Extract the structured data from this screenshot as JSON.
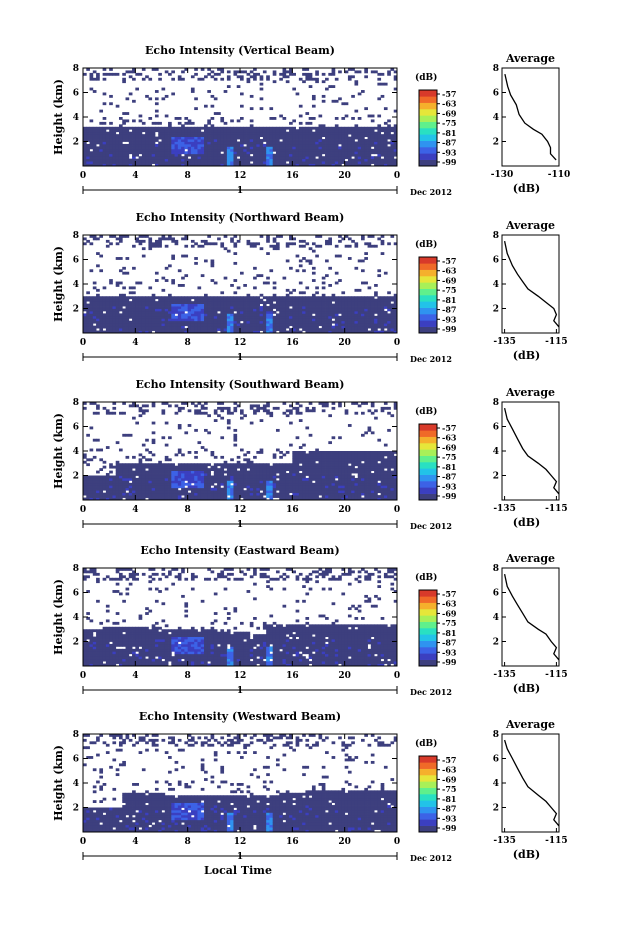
{
  "colormap": [
    "#3d3f7e",
    "#3b3fc0",
    "#3c62e6",
    "#2f93f0",
    "#22c3e8",
    "#29e0c2",
    "#5ff08c",
    "#a8f058",
    "#e6e63a",
    "#f5b02c",
    "#f06a28",
    "#d83a2a"
  ],
  "colorbar": {
    "unit": "(dB)",
    "labels": [
      "-57",
      "-63",
      "-69",
      "-75",
      "-81",
      "-87",
      "-93",
      "-99"
    ]
  },
  "month_label": "Dec 2012",
  "day_label": "1",
  "xlabel": "Local Time",
  "ylabel": "Height (km)",
  "avg_title": "Average",
  "avg_xlabel": "(dB)",
  "chart_data": [
    {
      "type": "heatmap",
      "title": "Echo Intensity (Vertical Beam)",
      "xlabel": "",
      "ylabel": "Height (km)",
      "x_range": [
        0,
        24
      ],
      "y_range": [
        0,
        8
      ],
      "x_ticks": [
        "0",
        "4",
        "8",
        "12",
        "16",
        "20",
        "0"
      ],
      "y_ticks": [
        "2",
        "4",
        "6",
        "8"
      ],
      "echo_top_profile": [
        [
          0,
          3.2
        ],
        [
          3,
          3.3
        ],
        [
          6,
          3.3
        ],
        [
          10,
          3.3
        ],
        [
          14,
          3.3
        ],
        [
          18,
          3.3
        ],
        [
          24,
          3.3
        ]
      ],
      "average_profile": {
        "type": "line",
        "xlim": [
          -130,
          -110
        ],
        "x_ticks": [
          "-130",
          "-110"
        ],
        "points": [
          [
            -129,
            7.5
          ],
          [
            -128,
            6.5
          ],
          [
            -127,
            5.8
          ],
          [
            -125,
            5.0
          ],
          [
            -124,
            4.2
          ],
          [
            -122,
            3.5
          ],
          [
            -119,
            3.0
          ],
          [
            -116,
            2.6
          ],
          [
            -114,
            2.0
          ],
          [
            -113,
            1.5
          ],
          [
            -113,
            1.0
          ],
          [
            -111,
            0.5
          ]
        ]
      }
    },
    {
      "type": "heatmap",
      "title": "Echo Intensity (Northward Beam)",
      "xlabel": "",
      "ylabel": "Height (km)",
      "x_range": [
        0,
        24
      ],
      "y_range": [
        0,
        8
      ],
      "x_ticks": [
        "0",
        "4",
        "8",
        "12",
        "16",
        "20",
        "0"
      ],
      "y_ticks": [
        "2",
        "4",
        "6",
        "8"
      ],
      "echo_top_profile": [
        [
          0,
          3.0
        ],
        [
          4,
          3.0
        ],
        [
          8,
          3.1
        ],
        [
          12,
          2.9
        ],
        [
          16,
          3.0
        ],
        [
          20,
          3.0
        ],
        [
          24,
          3.0
        ]
      ],
      "average_profile": {
        "type": "line",
        "xlim": [
          -136,
          -114
        ],
        "x_ticks": [
          "-135",
          "-115"
        ],
        "points": [
          [
            -135,
            7.5
          ],
          [
            -134,
            6.5
          ],
          [
            -132,
            5.5
          ],
          [
            -130,
            4.8
          ],
          [
            -128,
            4.2
          ],
          [
            -126,
            3.6
          ],
          [
            -122,
            3.0
          ],
          [
            -119,
            2.5
          ],
          [
            -116,
            2.0
          ],
          [
            -115,
            1.5
          ],
          [
            -116,
            1.0
          ],
          [
            -114,
            0.5
          ]
        ]
      }
    },
    {
      "type": "heatmap",
      "title": "Echo Intensity (Southward Beam)",
      "xlabel": "",
      "ylabel": "Height (km)",
      "x_range": [
        0,
        24
      ],
      "y_range": [
        0,
        8
      ],
      "x_ticks": [
        "0",
        "4",
        "8",
        "12",
        "16",
        "20",
        "0"
      ],
      "y_ticks": [
        "2",
        "4",
        "6",
        "8"
      ],
      "echo_top_profile": [
        [
          0,
          2.0
        ],
        [
          2.5,
          2.0
        ],
        [
          2.6,
          3.0
        ],
        [
          10,
          3.0
        ],
        [
          16,
          3.0
        ],
        [
          16.1,
          4.0
        ],
        [
          24,
          4.0
        ]
      ],
      "average_profile": {
        "type": "line",
        "xlim": [
          -136,
          -114
        ],
        "x_ticks": [
          "-135",
          "-115"
        ],
        "points": [
          [
            -135,
            7.5
          ],
          [
            -134,
            6.6
          ],
          [
            -132,
            5.8
          ],
          [
            -130,
            5.0
          ],
          [
            -128,
            4.2
          ],
          [
            -126,
            3.6
          ],
          [
            -122,
            3.0
          ],
          [
            -119,
            2.5
          ],
          [
            -117,
            2.0
          ],
          [
            -115,
            1.5
          ],
          [
            -116,
            1.0
          ],
          [
            -114,
            0.5
          ]
        ]
      }
    },
    {
      "type": "heatmap",
      "title": "Echo Intensity (Eastward Beam)",
      "xlabel": "",
      "ylabel": "Height (km)",
      "x_range": [
        0,
        24
      ],
      "y_range": [
        0,
        8
      ],
      "x_ticks": [
        "0",
        "4",
        "8",
        "12",
        "16",
        "20",
        "0"
      ],
      "y_ticks": [
        "2",
        "4",
        "6",
        "8"
      ],
      "echo_top_profile": [
        [
          0,
          3.0
        ],
        [
          3,
          3.2
        ],
        [
          9,
          3.0
        ],
        [
          14,
          2.6
        ],
        [
          14.1,
          3.4
        ],
        [
          20,
          3.4
        ],
        [
          24,
          3.5
        ]
      ],
      "average_profile": {
        "type": "line",
        "xlim": [
          -136,
          -114
        ],
        "x_ticks": [
          "-135",
          "-115"
        ],
        "points": [
          [
            -135,
            7.5
          ],
          [
            -134,
            6.5
          ],
          [
            -132,
            5.7
          ],
          [
            -130,
            5.0
          ],
          [
            -128,
            4.3
          ],
          [
            -126,
            3.6
          ],
          [
            -122,
            3.0
          ],
          [
            -119,
            2.6
          ],
          [
            -117,
            2.0
          ],
          [
            -115,
            1.5
          ],
          [
            -116,
            1.0
          ],
          [
            -114,
            0.5
          ]
        ]
      }
    },
    {
      "type": "heatmap",
      "title": "Echo Intensity (Westward Beam)",
      "xlabel": "Local Time",
      "ylabel": "Height (km)",
      "x_range": [
        0,
        24
      ],
      "y_range": [
        0,
        8
      ],
      "x_ticks": [
        "0",
        "4",
        "8",
        "12",
        "16",
        "20",
        "0"
      ],
      "y_ticks": [
        "2",
        "4",
        "6",
        "8"
      ],
      "echo_top_profile": [
        [
          0,
          2.0
        ],
        [
          3,
          2.0
        ],
        [
          3.1,
          3.2
        ],
        [
          9,
          3.0
        ],
        [
          14,
          3.0
        ],
        [
          18,
          3.4
        ],
        [
          24,
          3.3
        ]
      ],
      "average_profile": {
        "type": "line",
        "xlim": [
          -136,
          -114
        ],
        "x_ticks": [
          "-135",
          "-115"
        ],
        "points": [
          [
            -135,
            7.5
          ],
          [
            -134,
            6.8
          ],
          [
            -132,
            6.0
          ],
          [
            -130,
            5.2
          ],
          [
            -128,
            4.4
          ],
          [
            -126,
            3.7
          ],
          [
            -122,
            3.0
          ],
          [
            -119,
            2.5
          ],
          [
            -117,
            2.0
          ],
          [
            -115,
            1.5
          ],
          [
            -116,
            1.0
          ],
          [
            -114,
            0.5
          ]
        ]
      }
    }
  ]
}
